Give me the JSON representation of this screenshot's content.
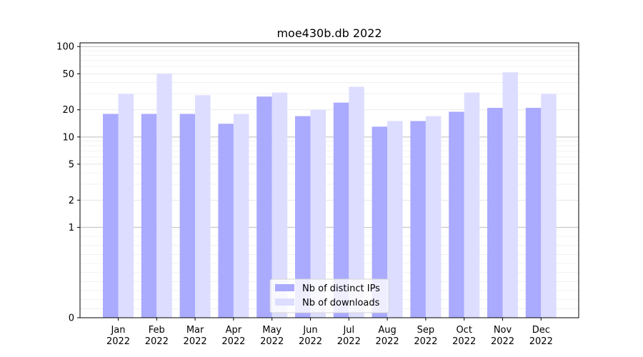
{
  "chart_data": {
    "type": "bar",
    "title": "moe430b.db 2022",
    "xlabel": "",
    "ylabel": "",
    "y_scale": "symlog",
    "ylim": [
      0,
      110
    ],
    "yticks": [
      0,
      1,
      2,
      5,
      10,
      20,
      50,
      100
    ],
    "categories": [
      "Jan\n2022",
      "Feb\n2022",
      "Mar\n2022",
      "Apr\n2022",
      "May\n2022",
      "Jun\n2022",
      "Jul\n2022",
      "Aug\n2022",
      "Sep\n2022",
      "Oct\n2022",
      "Nov\n2022",
      "Dec\n2022"
    ],
    "series": [
      {
        "name": "Nb of distinct IPs",
        "color": "#aaaaff",
        "values": [
          18,
          18,
          18,
          14,
          28,
          17,
          24,
          13,
          15,
          19,
          21,
          21
        ]
      },
      {
        "name": "Nb of downloads",
        "color": "#ddddff",
        "values": [
          30,
          50,
          29,
          18,
          31,
          20,
          36,
          15,
          17,
          31,
          52,
          30
        ]
      }
    ],
    "grid": true,
    "legend_position": "lower-center"
  }
}
